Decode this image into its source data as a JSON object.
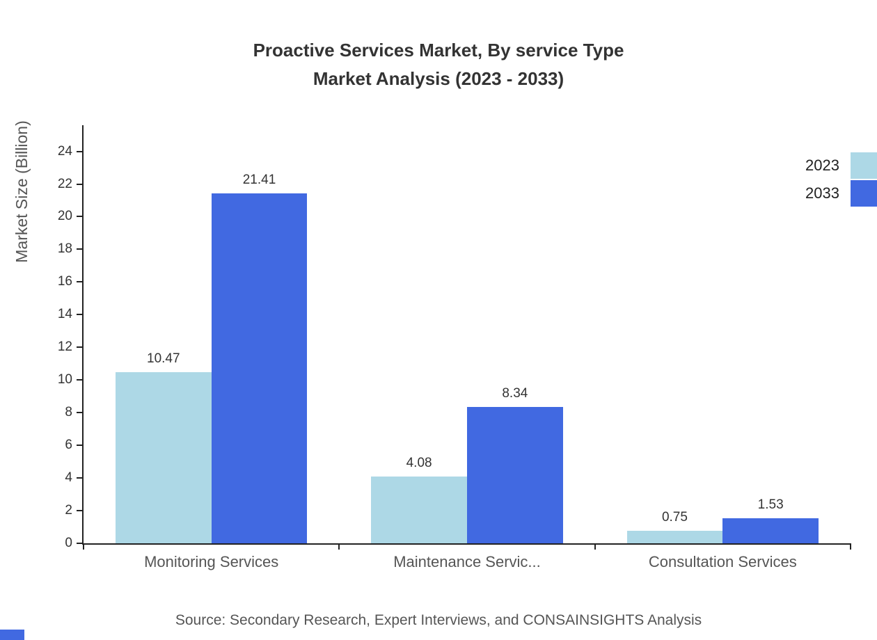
{
  "title": {
    "line1": "Proactive Services Market, By service Type",
    "line2": "Market Analysis (2023 - 2033)"
  },
  "source": "Source: Secondary Research, Expert Interviews, and CONSAINSIGHTS Analysis",
  "colors": {
    "series_2023": "#add8e6",
    "series_2033": "#4169e1",
    "axis": "#222222",
    "corner_accent": "#4169e1"
  },
  "chart_data": {
    "type": "bar",
    "title": "Proactive Services Market, By service Type Market Analysis (2023 - 2033)",
    "categories": [
      "Monitoring Services",
      "Maintenance Servic...",
      "Consultation Services"
    ],
    "series": [
      {
        "name": "2023",
        "color": "#add8e6",
        "values": [
          10.47,
          4.08,
          0.75
        ]
      },
      {
        "name": "2033",
        "color": "#4169e1",
        "values": [
          21.41,
          8.34,
          1.53
        ]
      }
    ],
    "xlabel": "",
    "ylabel": "Market Size (Billion)",
    "ylim": [
      0,
      24
    ],
    "y_ticks": [
      0,
      2,
      4,
      6,
      8,
      10,
      12,
      14,
      16,
      18,
      20,
      22,
      24
    ],
    "grid": false,
    "legend_position": "top-right",
    "value_labels": true
  }
}
